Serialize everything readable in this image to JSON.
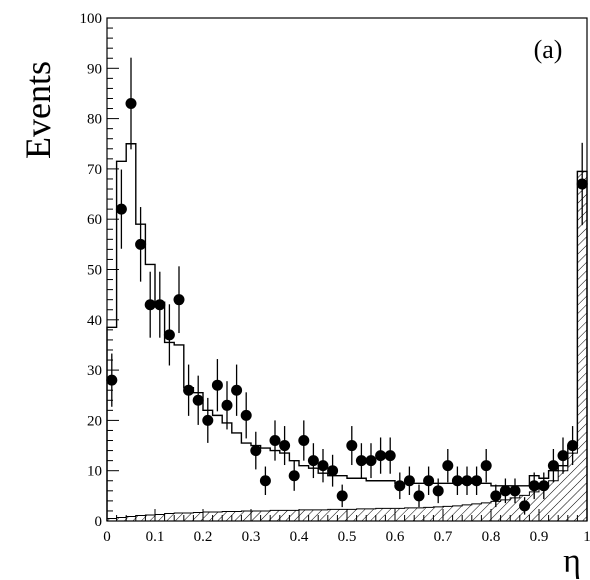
{
  "chart_data": {
    "type": "scatter",
    "xlabel": "η",
    "ylabel": "Events",
    "annotation": "(a)",
    "xlim": [
      0,
      1
    ],
    "ylim": [
      0,
      100
    ],
    "x_ticks": [
      "0",
      "0.1",
      "0.2",
      "0.3",
      "0.4",
      "0.5",
      "0.6",
      "0.7",
      "0.8",
      "0.9",
      "1"
    ],
    "y_ticks": [
      "0",
      "10",
      "20",
      "30",
      "40",
      "50",
      "60",
      "70",
      "80",
      "90",
      "100"
    ],
    "grid": false,
    "bin_width": 0.02,
    "series": [
      {
        "style": "points-with-error-bars",
        "color": "#000000",
        "x": [
          0.01,
          0.03,
          0.05,
          0.07,
          0.09,
          0.11,
          0.13,
          0.15,
          0.17,
          0.19,
          0.21,
          0.23,
          0.25,
          0.27,
          0.29,
          0.31,
          0.33,
          0.35,
          0.37,
          0.39,
          0.41,
          0.43,
          0.45,
          0.47,
          0.49,
          0.51,
          0.53,
          0.55,
          0.57,
          0.59,
          0.61,
          0.63,
          0.65,
          0.67,
          0.69,
          0.71,
          0.73,
          0.75,
          0.77,
          0.79,
          0.81,
          0.83,
          0.85,
          0.87,
          0.89,
          0.91,
          0.93,
          0.95,
          0.97,
          0.99
        ],
        "y": [
          28,
          62,
          83,
          55,
          43,
          43,
          37,
          44,
          26,
          24,
          20,
          27,
          23,
          26,
          21,
          14,
          8,
          16,
          15,
          9,
          16,
          12,
          11,
          10,
          5,
          15,
          12,
          12,
          13,
          13,
          7,
          8,
          5,
          8,
          6,
          11,
          8,
          8,
          8,
          11,
          5,
          6,
          6,
          3,
          7,
          7,
          11,
          13,
          15,
          67
        ]
      },
      {
        "style": "histogram",
        "color": "#000000",
        "y": [
          38.5,
          71.5,
          75,
          59,
          51,
          43.5,
          35.5,
          35,
          26.5,
          25.5,
          22,
          21,
          19.5,
          17.5,
          15.5,
          15,
          14.5,
          14,
          13.5,
          12,
          11,
          10.5,
          9.5,
          9,
          9,
          8.5,
          8.5,
          8,
          8,
          8,
          7.5,
          7.5,
          7.5,
          7.5,
          7.5,
          7.5,
          7.5,
          7.5,
          7.5,
          7.5,
          7,
          7,
          7,
          7,
          9,
          8.5,
          10,
          11,
          15,
          69.5
        ]
      },
      {
        "style": "hatched-histogram",
        "color": "#000000",
        "y": [
          0.5,
          0.7,
          0.9,
          1.1,
          1.2,
          1.3,
          1.5,
          1.6,
          1.6,
          1.7,
          1.8,
          1.8,
          1.9,
          1.9,
          2,
          2,
          2,
          2.1,
          2.1,
          2.1,
          2.2,
          2.2,
          2.2,
          2.3,
          2.3,
          2.3,
          2.4,
          2.4,
          2.5,
          2.5,
          2.5,
          2.6,
          2.6,
          2.7,
          2.8,
          2.9,
          3,
          3.2,
          3.4,
          3.6,
          3.9,
          4.2,
          4.6,
          5.1,
          5.8,
          6.7,
          8,
          10,
          13.5,
          69.5
        ]
      }
    ]
  }
}
